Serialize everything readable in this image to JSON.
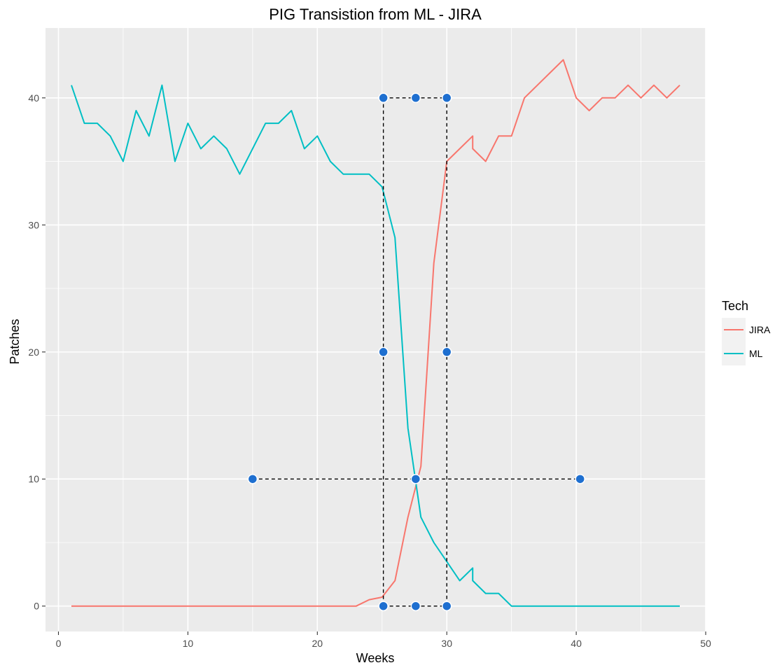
{
  "chart_data": {
    "type": "line",
    "title": "PIG Transistion from ML - JIRA",
    "xlabel": "Weeks",
    "ylabel": "Patches",
    "xlim": [
      -1,
      50
    ],
    "ylim": [
      -2,
      45.5
    ],
    "x_ticks": [
      0,
      10,
      20,
      30,
      40,
      50
    ],
    "y_ticks": [
      0,
      10,
      20,
      30,
      40
    ],
    "grid": true,
    "legend": {
      "title": "Tech",
      "placement": "right"
    },
    "series": [
      {
        "name": "JIRA",
        "color": "#F8766D",
        "points": [
          [
            1,
            0
          ],
          [
            2,
            0
          ],
          [
            3,
            0
          ],
          [
            4,
            0
          ],
          [
            5,
            0
          ],
          [
            6,
            0
          ],
          [
            7,
            0
          ],
          [
            8,
            0
          ],
          [
            9,
            0
          ],
          [
            10,
            0
          ],
          [
            11,
            0
          ],
          [
            12,
            0
          ],
          [
            13,
            0
          ],
          [
            14,
            0
          ],
          [
            15,
            0
          ],
          [
            16,
            0
          ],
          [
            17,
            0
          ],
          [
            18,
            0
          ],
          [
            19,
            0
          ],
          [
            20,
            0
          ],
          [
            21,
            0
          ],
          [
            22,
            0
          ],
          [
            23,
            0
          ],
          [
            24,
            0.5
          ],
          [
            25,
            0.7
          ],
          [
            26,
            2
          ],
          [
            27,
            7
          ],
          [
            28,
            11
          ],
          [
            29,
            27
          ],
          [
            30,
            35
          ],
          [
            31,
            36
          ],
          [
            32,
            37
          ],
          [
            32,
            36
          ],
          [
            33,
            35
          ],
          [
            34,
            37
          ],
          [
            35,
            37
          ],
          [
            36,
            40
          ],
          [
            37,
            41
          ],
          [
            38,
            42
          ],
          [
            39,
            43
          ],
          [
            40,
            40
          ],
          [
            41,
            39
          ],
          [
            42,
            40
          ],
          [
            43,
            40
          ],
          [
            44,
            41
          ],
          [
            45,
            40
          ],
          [
            46,
            41
          ],
          [
            47,
            40
          ],
          [
            48,
            41
          ]
        ]
      },
      {
        "name": "ML",
        "color": "#00BFC4",
        "points": [
          [
            1,
            41
          ],
          [
            2,
            38
          ],
          [
            3,
            38
          ],
          [
            4,
            37
          ],
          [
            5,
            35
          ],
          [
            6,
            39
          ],
          [
            7,
            37
          ],
          [
            8,
            41
          ],
          [
            9,
            35
          ],
          [
            10,
            38
          ],
          [
            11,
            36
          ],
          [
            12,
            37
          ],
          [
            13,
            36
          ],
          [
            14,
            34
          ],
          [
            15,
            36
          ],
          [
            16,
            38
          ],
          [
            17,
            38
          ],
          [
            18,
            39
          ],
          [
            19,
            36
          ],
          [
            20,
            37
          ],
          [
            21,
            35
          ],
          [
            22,
            34
          ],
          [
            23,
            34
          ],
          [
            24,
            34
          ],
          [
            25,
            33
          ],
          [
            26,
            29
          ],
          [
            27,
            14
          ],
          [
            28,
            7
          ],
          [
            29,
            5
          ],
          [
            30,
            3.5
          ],
          [
            31,
            2
          ],
          [
            32,
            3
          ],
          [
            32,
            2
          ],
          [
            33,
            1
          ],
          [
            34,
            1
          ],
          [
            35,
            0
          ],
          [
            36,
            0
          ],
          [
            37,
            0
          ],
          [
            38,
            0
          ],
          [
            39,
            0
          ],
          [
            40,
            0
          ],
          [
            41,
            0
          ],
          [
            42,
            0
          ],
          [
            43,
            0
          ],
          [
            44,
            0
          ],
          [
            45,
            0
          ],
          [
            46,
            0
          ],
          [
            47,
            0
          ],
          [
            48,
            0
          ]
        ]
      }
    ],
    "annotations": {
      "marker_color": "#1E6FD0",
      "dashed_lines": [
        [
          [
            25.1,
            40
          ],
          [
            30,
            40
          ]
        ],
        [
          [
            25.1,
            40
          ],
          [
            25.1,
            0
          ]
        ],
        [
          [
            30,
            40
          ],
          [
            30,
            0
          ]
        ],
        [
          [
            25.1,
            0
          ],
          [
            30,
            0
          ]
        ],
        [
          [
            15,
            10
          ],
          [
            40.3,
            10
          ]
        ]
      ],
      "markers": [
        [
          25.1,
          40
        ],
        [
          27.6,
          40
        ],
        [
          30,
          40
        ],
        [
          25.1,
          20
        ],
        [
          30,
          20
        ],
        [
          15,
          10
        ],
        [
          27.6,
          10
        ],
        [
          40.3,
          10
        ],
        [
          25.1,
          0
        ],
        [
          27.6,
          0
        ],
        [
          30,
          0
        ]
      ]
    }
  }
}
